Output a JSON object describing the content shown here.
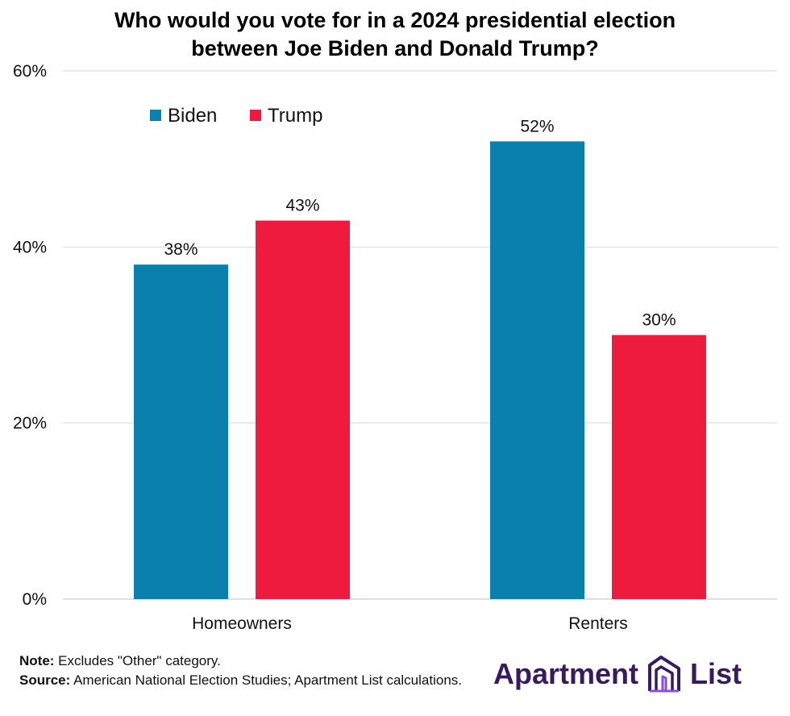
{
  "chart_data": {
    "type": "bar",
    "title_lines": [
      "Who would you vote for in a 2024 presidential election",
      "between Joe Biden and Donald Trump?"
    ],
    "categories": [
      "Homeowners",
      "Renters"
    ],
    "series": [
      {
        "name": "Biden",
        "values": [
          38,
          52
        ],
        "labels": [
          "38%",
          "52%"
        ],
        "color": "#0a80ad"
      },
      {
        "name": "Trump",
        "values": [
          43,
          30
        ],
        "labels": [
          "43%",
          "30%"
        ],
        "color": "#ee1b3f"
      }
    ],
    "ylim": [
      0,
      60
    ],
    "yticks": [
      0,
      20,
      40,
      60
    ],
    "ytick_labels": [
      "0%",
      "20%",
      "40%",
      "60%"
    ],
    "grid": true,
    "legend_position": "top-left",
    "xlabel": "",
    "ylabel": ""
  },
  "footer": {
    "note_label": "Note:",
    "note_text": " Excludes \"Other\" category.",
    "source_label": "Source:",
    "source_text": " American National Election Studies; Apartment List calculations."
  },
  "logo": {
    "part1": "Apartment",
    "part2": "List"
  },
  "colors": {
    "grid": "#d9d9d9",
    "axis": "#bfbfbf",
    "logo_text": "#3a1a5e",
    "logo_accent": "#8a4fd8"
  }
}
